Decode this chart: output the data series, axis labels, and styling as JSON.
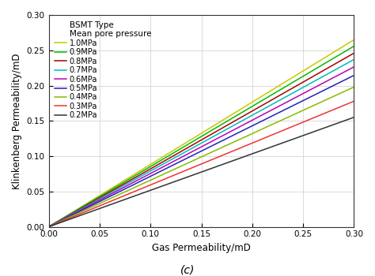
{
  "xlabel": "Gas Permeability/mD",
  "ylabel": "Klinkenberg Permeability/mD",
  "caption": "(c)",
  "legend_title1": "BSMT Type",
  "legend_title2": "Mean pore pressure",
  "xlim": [
    0,
    0.3
  ],
  "ylim": [
    0,
    0.3
  ],
  "xticks": [
    0,
    0.05,
    0.1,
    0.15,
    0.2,
    0.25,
    0.3
  ],
  "yticks": [
    0,
    0.05,
    0.1,
    0.15,
    0.2,
    0.25,
    0.3
  ],
  "series": [
    {
      "label": "1.0MPa",
      "slope": 0.883,
      "color": "#C8C800",
      "lw": 1.1
    },
    {
      "label": "0.9MPa",
      "slope": 0.853,
      "color": "#00BB00",
      "lw": 1.1
    },
    {
      "label": "0.8MPa",
      "slope": 0.82,
      "color": "#AA0000",
      "lw": 1.1
    },
    {
      "label": "0.7MPa",
      "slope": 0.79,
      "color": "#00BBBB",
      "lw": 1.1
    },
    {
      "label": "0.6MPa",
      "slope": 0.755,
      "color": "#BB00BB",
      "lw": 1.1
    },
    {
      "label": "0.5MPa",
      "slope": 0.715,
      "color": "#2222BB",
      "lw": 1.1
    },
    {
      "label": "0.4MPa",
      "slope": 0.66,
      "color": "#88BB00",
      "lw": 1.1
    },
    {
      "label": "0.3MPa",
      "slope": 0.593,
      "color": "#EE3333",
      "lw": 1.1
    },
    {
      "label": "0.2MPa",
      "slope": 0.517,
      "color": "#333333",
      "lw": 1.1
    }
  ],
  "legend_fontsize": 7.0,
  "axis_fontsize": 8.5,
  "tick_fontsize": 7.5,
  "caption_fontsize": 10,
  "grid": true,
  "grid_color": "#cccccc",
  "grid_lw": 0.5,
  "bg_color": "#ffffff"
}
